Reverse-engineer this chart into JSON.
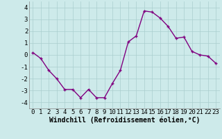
{
  "x": [
    0,
    1,
    2,
    3,
    4,
    5,
    6,
    7,
    8,
    9,
    10,
    11,
    12,
    13,
    14,
    15,
    16,
    17,
    18,
    19,
    20,
    21,
    22,
    23
  ],
  "y": [
    0.2,
    -0.3,
    -1.3,
    -2.0,
    -2.9,
    -2.9,
    -3.6,
    -2.9,
    -3.6,
    -3.6,
    -2.4,
    -1.3,
    1.1,
    1.6,
    3.7,
    3.6,
    3.1,
    2.4,
    1.4,
    1.5,
    0.3,
    0.0,
    -0.1,
    -0.7
  ],
  "line_color": "#800080",
  "marker": "+",
  "bg_color": "#cdeaea",
  "grid_color": "#aacece",
  "xlabel": "Windchill (Refroidissement éolien,°C)",
  "xlabel_fontsize": 7,
  "xtick_labels": [
    "0",
    "1",
    "2",
    "3",
    "4",
    "5",
    "6",
    "7",
    "8",
    "9",
    "10",
    "11",
    "12",
    "13",
    "14",
    "15",
    "16",
    "17",
    "18",
    "19",
    "20",
    "21",
    "22",
    "23"
  ],
  "ytick_values": [
    -4,
    -3,
    -2,
    -1,
    0,
    1,
    2,
    3,
    4
  ],
  "ylim": [
    -4.5,
    4.5
  ],
  "xlim": [
    -0.5,
    23.5
  ],
  "tick_fontsize": 6.5,
  "linewidth": 1.0,
  "markersize": 3,
  "markeredgewidth": 1.0
}
